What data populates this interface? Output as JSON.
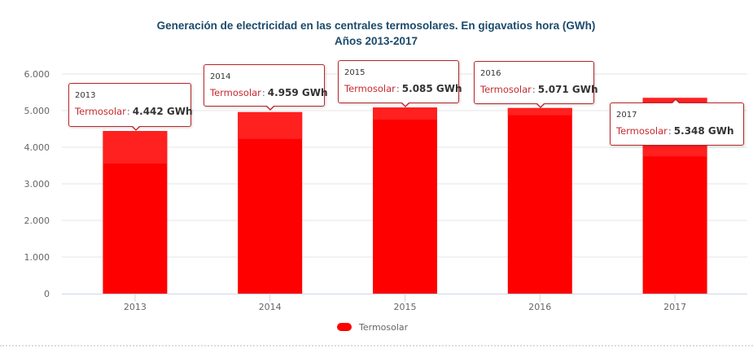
{
  "chart_data": {
    "type": "bar",
    "title": "Generación de electricidad en las centrales termosolares. En gigavatios hora (GWh)",
    "subtitle": "Años 2013-2017",
    "categories": [
      "2013",
      "2014",
      "2015",
      "2016",
      "2017"
    ],
    "series": [
      {
        "name": "Termosolar",
        "values": [
          4442,
          4959,
          5085,
          5071,
          5348
        ],
        "color": "#ff0000"
      }
    ],
    "xlabel": "",
    "ylabel": "",
    "ylim": [
      0,
      6000
    ],
    "yticks": [
      0,
      1000,
      2000,
      3000,
      4000,
      5000,
      6000
    ],
    "ytick_labels": [
      "0",
      "1.000",
      "2.000",
      "3.000",
      "4.000",
      "5.000",
      "6.000"
    ],
    "grid": true,
    "legend": "bottom-center",
    "unit": "GWh"
  },
  "tooltips": [
    {
      "year": "2013",
      "series": "Termosolar",
      "separator": ":",
      "value": "4.442 GWh"
    },
    {
      "year": "2014",
      "series": "Termosolar",
      "separator": ":",
      "value": "4.959 GWh"
    },
    {
      "year": "2015",
      "series": "Termosolar",
      "separator": ":",
      "value": "5.085 GWh"
    },
    {
      "year": "2016",
      "series": "Termosolar",
      "separator": ":",
      "value": "5.071 GWh"
    },
    {
      "year": "2017",
      "series": "Termosolar",
      "separator": ":",
      "value": "5.348 GWh"
    }
  ],
  "colors": {
    "bar": "#ff0000",
    "bar_highlight": "#ff2020",
    "title": "#1b4a6b",
    "tooltip_border": "#b8262a"
  }
}
